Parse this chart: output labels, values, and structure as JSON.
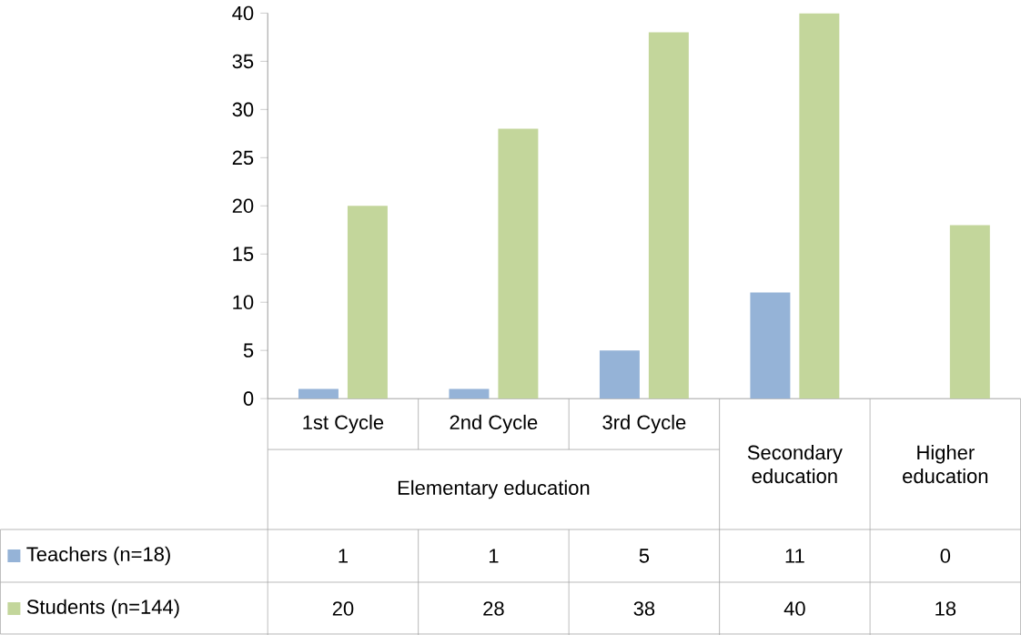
{
  "chart_data": {
    "type": "bar",
    "categories": [
      "1st Cycle",
      "2nd Cycle",
      "3rd Cycle",
      "Secondary education",
      "Higher education"
    ],
    "series": [
      {
        "name": "Teachers (n=18)",
        "color": "#95b3d7",
        "values": [
          1,
          1,
          5,
          11,
          0
        ]
      },
      {
        "name": "Students (n=144)",
        "color": "#c3d69b",
        "values": [
          20,
          28,
          38,
          40,
          18
        ]
      }
    ],
    "ylim": [
      0,
      40
    ],
    "yticks": [
      0,
      5,
      10,
      15,
      20,
      25,
      30,
      35,
      40
    ],
    "annotations": [
      "Elementary education"
    ],
    "data_labels": true,
    "legend": "bottom",
    "grid": false
  }
}
